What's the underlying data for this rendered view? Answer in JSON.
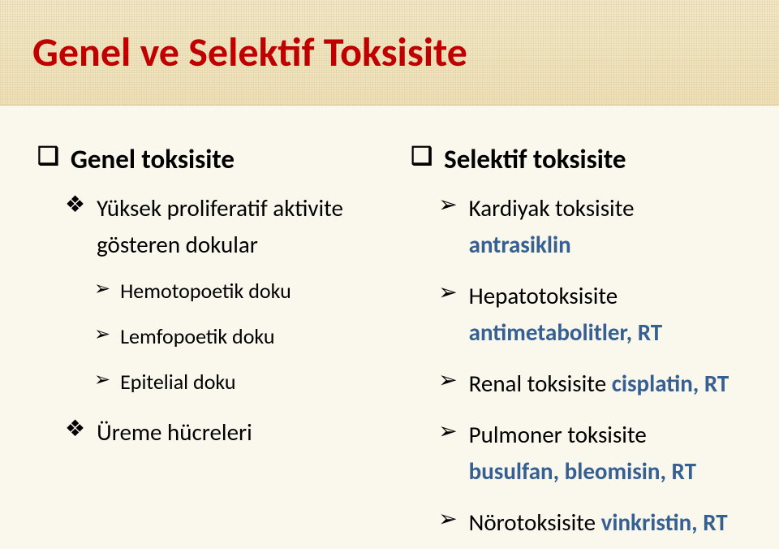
{
  "title": "Genel ve Selektif Toksisite",
  "colors": {
    "title": "#c00000",
    "accent": "#376092",
    "body": "#000000",
    "slide_bg": "#faf7ed",
    "band_bg_a": "#f2e8c8",
    "band_bg_b": "#efe2ba"
  },
  "bullets": {
    "lvl1": "❑",
    "lvl2": "❖",
    "lvl3": "➢"
  },
  "left": {
    "h1": "Genel toksisite",
    "b1_text": "Yüksek proliferatif aktivite gösteren dokular",
    "sub1": "Hemotopoetik doku",
    "sub2": "Lemfopoetik doku",
    "sub3": "Epitelial doku",
    "b2_text": "Üreme hücreleri"
  },
  "right": {
    "h1": "Selektif toksisite",
    "r1_a": "Kardiyak toksisite ",
    "r1_b": "antrasiklin",
    "r2_a": "Hepatotoksisite ",
    "r2_b": "antimetabolitler, RT",
    "r3_a": "Renal toksisite ",
    "r3_b": "cisplatin, RT",
    "r4_a": "Pulmoner toksisite ",
    "r4_b": "busulfan, bleomisin, RT",
    "r5_a": "Nörotoksisite ",
    "r5_b": "vinkristin, RT"
  }
}
